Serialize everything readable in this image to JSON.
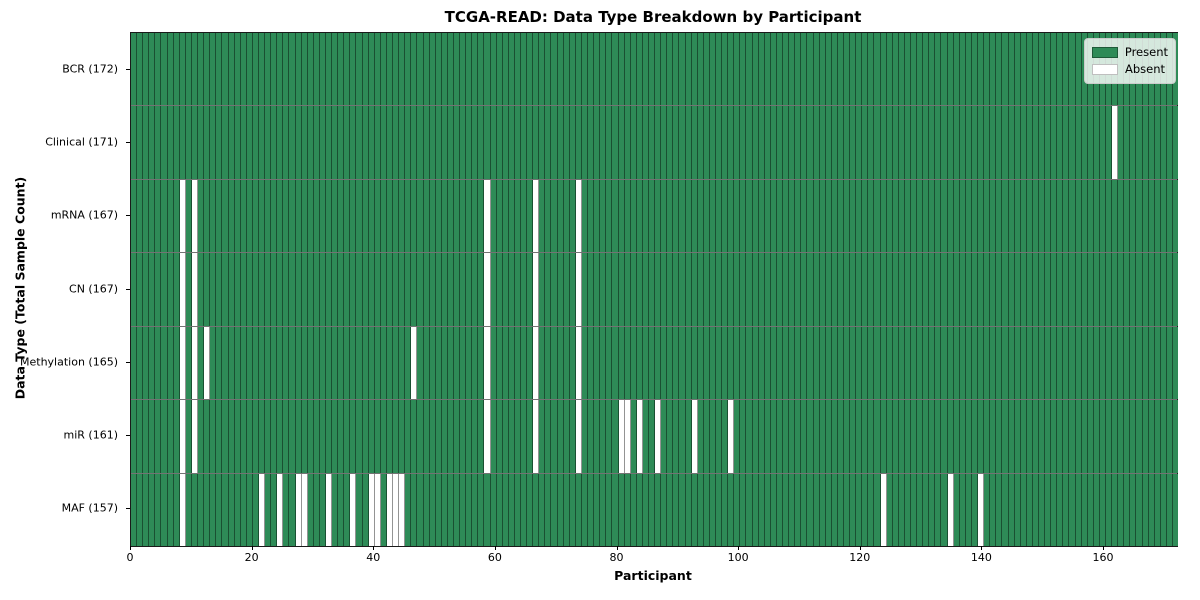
{
  "title": "TCGA-READ: Data Type Breakdown by Participant",
  "xlabel": "Participant",
  "ylabel": "Data Type (Total Sample Count)",
  "legend": {
    "present_label": "Present",
    "absent_label": "Absent"
  },
  "colors": {
    "present": "#2E8B57",
    "absent": "#FFFFFF"
  },
  "chart_data": {
    "type": "heatmap",
    "x_ticks": [
      0,
      20,
      40,
      60,
      80,
      100,
      120,
      140,
      160
    ],
    "x_range": [
      0,
      172
    ],
    "n_participants": 172,
    "legend_position": "upper right",
    "rows": [
      {
        "name": "BCR",
        "label": "BCR (172)",
        "total": 172,
        "absent": []
      },
      {
        "name": "Clinical",
        "label": "Clinical (171)",
        "total": 171,
        "absent": [
          161
        ]
      },
      {
        "name": "mRNA",
        "label": "mRNA (167)",
        "total": 167,
        "absent": [
          8,
          10,
          58,
          66,
          73
        ]
      },
      {
        "name": "CN",
        "label": "CN (167)",
        "total": 167,
        "absent": [
          8,
          10,
          58,
          66,
          73
        ]
      },
      {
        "name": "Methylation",
        "label": "Methylation (165)",
        "total": 165,
        "absent": [
          8,
          10,
          12,
          46,
          58,
          66,
          73
        ]
      },
      {
        "name": "miR",
        "label": "miR (161)",
        "total": 161,
        "absent": [
          8,
          10,
          58,
          66,
          73,
          80,
          81,
          83,
          86,
          92,
          98
        ]
      },
      {
        "name": "MAF",
        "label": "MAF (157)",
        "total": 157,
        "absent": [
          8,
          21,
          24,
          27,
          28,
          32,
          36,
          39,
          40,
          42,
          43,
          44,
          123,
          134,
          139
        ]
      }
    ]
  }
}
